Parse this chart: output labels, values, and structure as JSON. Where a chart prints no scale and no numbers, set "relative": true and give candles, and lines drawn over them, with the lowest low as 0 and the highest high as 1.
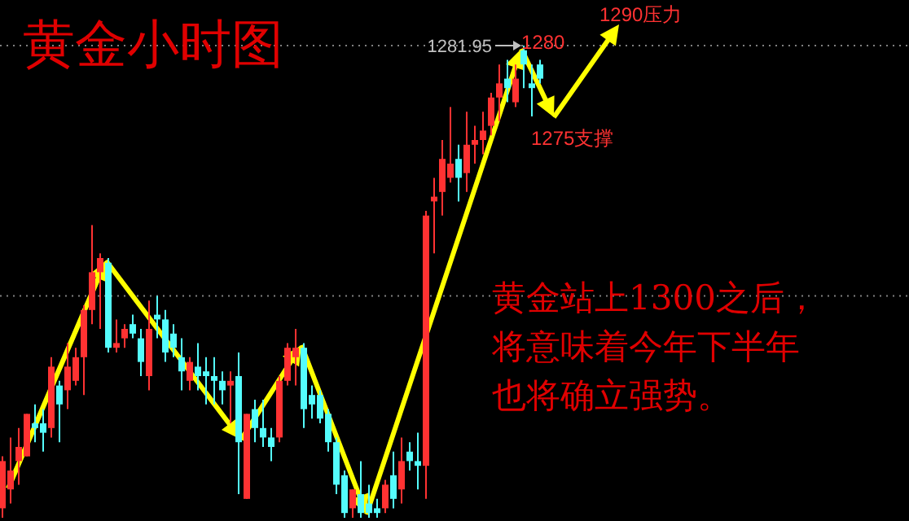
{
  "chart_data": {
    "type": "candlestick",
    "title": "黄金小时图",
    "relative": true,
    "categories": [
      null,
      null,
      null,
      null,
      null,
      null,
      null,
      null,
      null,
      null,
      null,
      null,
      null,
      null,
      null,
      null,
      null,
      null,
      null,
      null,
      null,
      null,
      null,
      null,
      null,
      null,
      null,
      null,
      null,
      null,
      null,
      null,
      null,
      null,
      null,
      null,
      null,
      null,
      null,
      null,
      null,
      null,
      null,
      null,
      null,
      null,
      null,
      null,
      null,
      null,
      null,
      null,
      null,
      null,
      null,
      null,
      null,
      null,
      null,
      null,
      null,
      null,
      null,
      null,
      null,
      null,
      null
    ],
    "ohlc": [
      [
        0.02,
        0.13,
        0,
        0.12
      ],
      [
        0.06,
        0.17,
        0.03,
        0.1
      ],
      [
        0.12,
        0.19,
        0.07,
        0.15
      ],
      [
        0.13,
        0.22,
        0.13,
        0.22
      ],
      [
        0.2,
        0.24,
        0.16,
        0.19
      ],
      [
        0.2,
        0.23,
        0.14,
        0.18
      ],
      [
        0.19,
        0.34,
        0.17,
        0.32
      ],
      [
        0.28,
        0.29,
        0.16,
        0.24
      ],
      [
        0.27,
        0.37,
        0.23,
        0.32
      ],
      [
        0.29,
        0.36,
        0.28,
        0.34
      ],
      [
        0.34,
        0.45,
        0.26,
        0.44
      ],
      [
        0.44,
        0.62,
        0.41,
        0.52
      ],
      [
        0.52,
        0.56,
        0.4,
        0.55
      ],
      [
        0.54,
        0.55,
        0.35,
        0.36
      ],
      [
        0.36,
        0.42,
        0.35,
        0.37
      ],
      [
        0.38,
        0.41,
        0.36,
        0.4
      ],
      [
        0.41,
        0.43,
        0.38,
        0.39
      ],
      [
        0.38,
        0.4,
        0.3,
        0.33
      ],
      [
        0.3,
        0.46,
        0.27,
        0.4
      ],
      [
        0.43,
        0.47,
        0.38,
        0.42
      ],
      [
        0.42,
        0.44,
        0.33,
        0.35
      ],
      [
        0.39,
        0.41,
        0.34,
        0.36
      ],
      [
        0.34,
        0.38,
        0.27,
        0.31
      ],
      [
        0.29,
        0.34,
        0.27,
        0.33
      ],
      [
        0.32,
        0.37,
        0.27,
        0.3
      ],
      [
        0.31,
        0.34,
        0.24,
        0.3
      ],
      [
        0.3,
        0.34,
        0.24,
        0.29
      ],
      [
        0.29,
        0.31,
        0.24,
        0.27
      ],
      [
        0.28,
        0.31,
        0.2,
        0.29
      ],
      [
        0.3,
        0.35,
        0.05,
        0.16
      ],
      [
        0.04,
        0.22,
        0.04,
        0.22
      ],
      [
        0.23,
        0.25,
        0.16,
        0.19
      ],
      [
        0.19,
        0.25,
        0.15,
        0.17
      ],
      [
        0.17,
        0.19,
        0.12,
        0.15
      ],
      [
        0.17,
        0.3,
        0.16,
        0.29
      ],
      [
        0.29,
        0.37,
        0.28,
        0.36
      ],
      [
        0.34,
        0.4,
        0.28,
        0.36
      ],
      [
        0.36,
        0.37,
        0.19,
        0.23
      ],
      [
        0.26,
        0.28,
        0.21,
        0.24
      ],
      [
        0.26,
        0.27,
        0.2,
        0.21
      ],
      [
        0.22,
        0.23,
        0.14,
        0.16
      ],
      [
        0.16,
        0.17,
        0.05,
        0.07
      ],
      [
        0.09,
        0.1,
        0,
        0.01
      ],
      [
        0.02,
        0.06,
        0,
        0.06
      ],
      [
        0.05,
        0.12,
        0,
        0.01
      ],
      [
        0.03,
        0.07,
        0,
        0.01
      ],
      [
        0.02,
        0.04,
        0,
        0.01
      ],
      [
        0.02,
        0.08,
        0.01,
        0.07
      ],
      [
        0.09,
        0.14,
        0.02,
        0.04
      ],
      [
        0.06,
        0.17,
        0.03,
        0.12
      ],
      [
        0.14,
        0.16,
        0.1,
        0.12
      ],
      [
        0.12,
        0.18,
        0.06,
        0.11
      ],
      [
        0.11,
        0.65,
        0.04,
        0.64
      ],
      [
        0.67,
        0.72,
        0.56,
        0.68
      ],
      [
        0.69,
        0.8,
        0.64,
        0.76
      ],
      [
        0.72,
        0.87,
        0.71,
        0.75
      ],
      [
        0.76,
        0.79,
        0.67,
        0.72
      ],
      [
        0.73,
        0.86,
        0.69,
        0.79
      ],
      [
        0.79,
        0.83,
        0.75,
        0.8
      ],
      [
        0.8,
        0.86,
        0.77,
        0.82
      ],
      [
        0.83,
        0.9,
        0.81,
        0.89
      ],
      [
        0.89,
        0.96,
        0.84,
        0.92
      ],
      [
        0.93,
        0.97,
        0.88,
        0.91
      ],
      [
        0.88,
        0.96,
        0.87,
        0.93
      ],
      [
        0.99,
        1,
        0.91,
        0.96
      ],
      [
        0.92,
        0.96,
        0.85,
        0.91
      ],
      [
        0.96,
        0.97,
        0.92,
        0.93
      ]
    ],
    "ref_lines": [
      {
        "axis": "y",
        "value": 1,
        "color": "#808080",
        "line_style": "dotted"
      },
      {
        "axis": "y",
        "value": 0.47,
        "color": "#808080",
        "line_style": "dotted"
      }
    ],
    "annotations": [
      "1281.95",
      "1280",
      "1275支撑",
      "1290压力",
      "黄金站上1300之后，将意味着今年下半年也将确立强势。"
    ]
  }
}
